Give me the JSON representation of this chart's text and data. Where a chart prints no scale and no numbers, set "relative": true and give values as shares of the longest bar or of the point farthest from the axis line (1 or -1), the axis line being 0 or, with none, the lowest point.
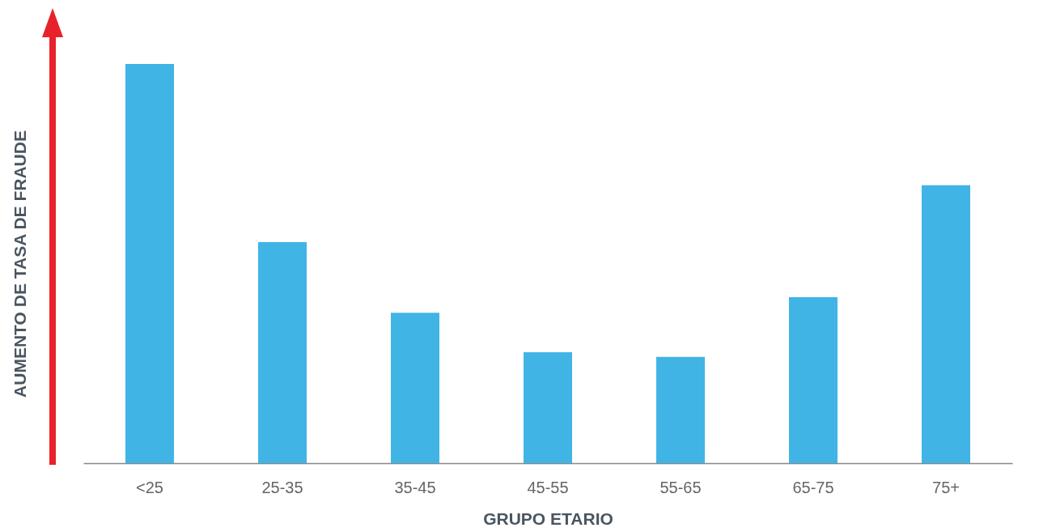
{
  "chart_data": {
    "type": "bar",
    "xlabel": "GRUPO ETARIO",
    "ylabel": "AUMENTO DE TASA DE FRAUDE",
    "categories": [
      "<25",
      "25-35",
      "35-45",
      "45-55",
      "55-65",
      "65-75",
      "75+"
    ],
    "values": [
      1,
      0.554,
      0.377,
      0.278,
      0.266,
      0.416,
      0.696
    ],
    "color": "#41b4e6",
    "relative": true
  }
}
